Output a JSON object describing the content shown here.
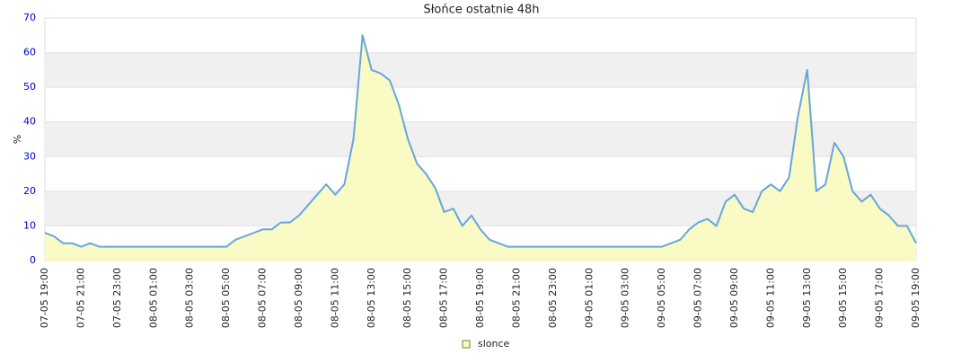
{
  "chart_data": {
    "type": "area",
    "title": "Słońce ostatnie 48h",
    "y_label": "%",
    "x": [
      "07-05 19:00",
      "07-05 19:30",
      "07-05 20:00",
      "07-05 20:30",
      "07-05 21:00",
      "07-05 21:30",
      "07-05 22:00",
      "07-05 22:30",
      "07-05 23:00",
      "07-05 23:30",
      "08-05 00:00",
      "08-05 00:30",
      "08-05 01:00",
      "08-05 01:30",
      "08-05 02:00",
      "08-05 02:30",
      "08-05 03:00",
      "08-05 03:30",
      "08-05 04:00",
      "08-05 04:30",
      "08-05 05:00",
      "08-05 05:30",
      "08-05 06:00",
      "08-05 06:30",
      "08-05 07:00",
      "08-05 07:30",
      "08-05 08:00",
      "08-05 08:30",
      "08-05 09:00",
      "08-05 09:30",
      "08-05 10:00",
      "08-05 10:30",
      "08-05 11:00",
      "08-05 11:30",
      "08-05 12:00",
      "08-05 12:30",
      "08-05 13:00",
      "08-05 13:30",
      "08-05 14:00",
      "08-05 14:30",
      "08-05 15:00",
      "08-05 15:30",
      "08-05 16:00",
      "08-05 16:30",
      "08-05 17:00",
      "08-05 17:30",
      "08-05 18:00",
      "08-05 18:30",
      "08-05 19:00",
      "08-05 19:30",
      "08-05 20:00",
      "08-05 20:30",
      "08-05 21:00",
      "08-05 21:30",
      "08-05 22:00",
      "08-05 22:30",
      "08-05 23:00",
      "08-05 23:30",
      "09-05 00:00",
      "09-05 00:30",
      "09-05 01:00",
      "09-05 01:30",
      "09-05 02:00",
      "09-05 02:30",
      "09-05 03:00",
      "09-05 03:30",
      "09-05 04:00",
      "09-05 04:30",
      "09-05 05:00",
      "09-05 05:30",
      "09-05 06:00",
      "09-05 06:30",
      "09-05 07:00",
      "09-05 07:30",
      "09-05 08:00",
      "09-05 08:30",
      "09-05 09:00",
      "09-05 09:30",
      "09-05 10:00",
      "09-05 10:30",
      "09-05 11:00",
      "09-05 11:30",
      "09-05 12:00",
      "09-05 12:30",
      "09-05 13:00",
      "09-05 13:30",
      "09-05 14:00",
      "09-05 14:30",
      "09-05 15:00",
      "09-05 15:30",
      "09-05 16:00",
      "09-05 16:30",
      "09-05 17:00",
      "09-05 17:30",
      "09-05 18:00",
      "09-05 18:30",
      "09-05 19:00"
    ],
    "xticks": [
      "07-05 19:00",
      "07-05 21:00",
      "07-05 23:00",
      "08-05 01:00",
      "08-05 03:00",
      "08-05 05:00",
      "08-05 07:00",
      "08-05 09:00",
      "08-05 11:00",
      "08-05 13:00",
      "08-05 15:00",
      "08-05 17:00",
      "08-05 19:00",
      "08-05 21:00",
      "08-05 23:00",
      "09-05 01:00",
      "09-05 03:00",
      "09-05 05:00",
      "09-05 07:00",
      "09-05 09:00",
      "09-05 11:00",
      "09-05 13:00",
      "09-05 15:00",
      "09-05 17:00",
      "09-05 19:00"
    ],
    "series": [
      {
        "name": "slonce",
        "color": "#66a6dc",
        "fill": "#fafac4",
        "values": [
          8,
          7,
          5,
          5,
          4,
          5,
          4,
          4,
          4,
          4,
          4,
          4,
          4,
          4,
          4,
          4,
          4,
          4,
          4,
          4,
          4,
          6,
          7,
          8,
          9,
          9,
          11,
          11,
          13,
          16,
          19,
          22,
          19,
          22,
          35,
          65,
          55,
          54,
          52,
          45,
          35,
          28,
          25,
          21,
          14,
          15,
          10,
          13,
          9,
          6,
          5,
          4,
          4,
          4,
          4,
          4,
          4,
          4,
          4,
          4,
          4,
          4,
          4,
          4,
          4,
          4,
          4,
          4,
          4,
          5,
          6,
          9,
          11,
          12,
          10,
          17,
          19,
          15,
          14,
          20,
          22,
          20,
          24,
          42,
          55,
          20,
          22,
          34,
          30,
          20,
          17,
          19,
          15,
          13,
          10,
          10,
          5
        ]
      }
    ],
    "ylim": [
      0,
      70
    ],
    "yticks": [
      0,
      10,
      20,
      30,
      40,
      50,
      60,
      70
    ],
    "grid": true,
    "legend": "bottom"
  }
}
